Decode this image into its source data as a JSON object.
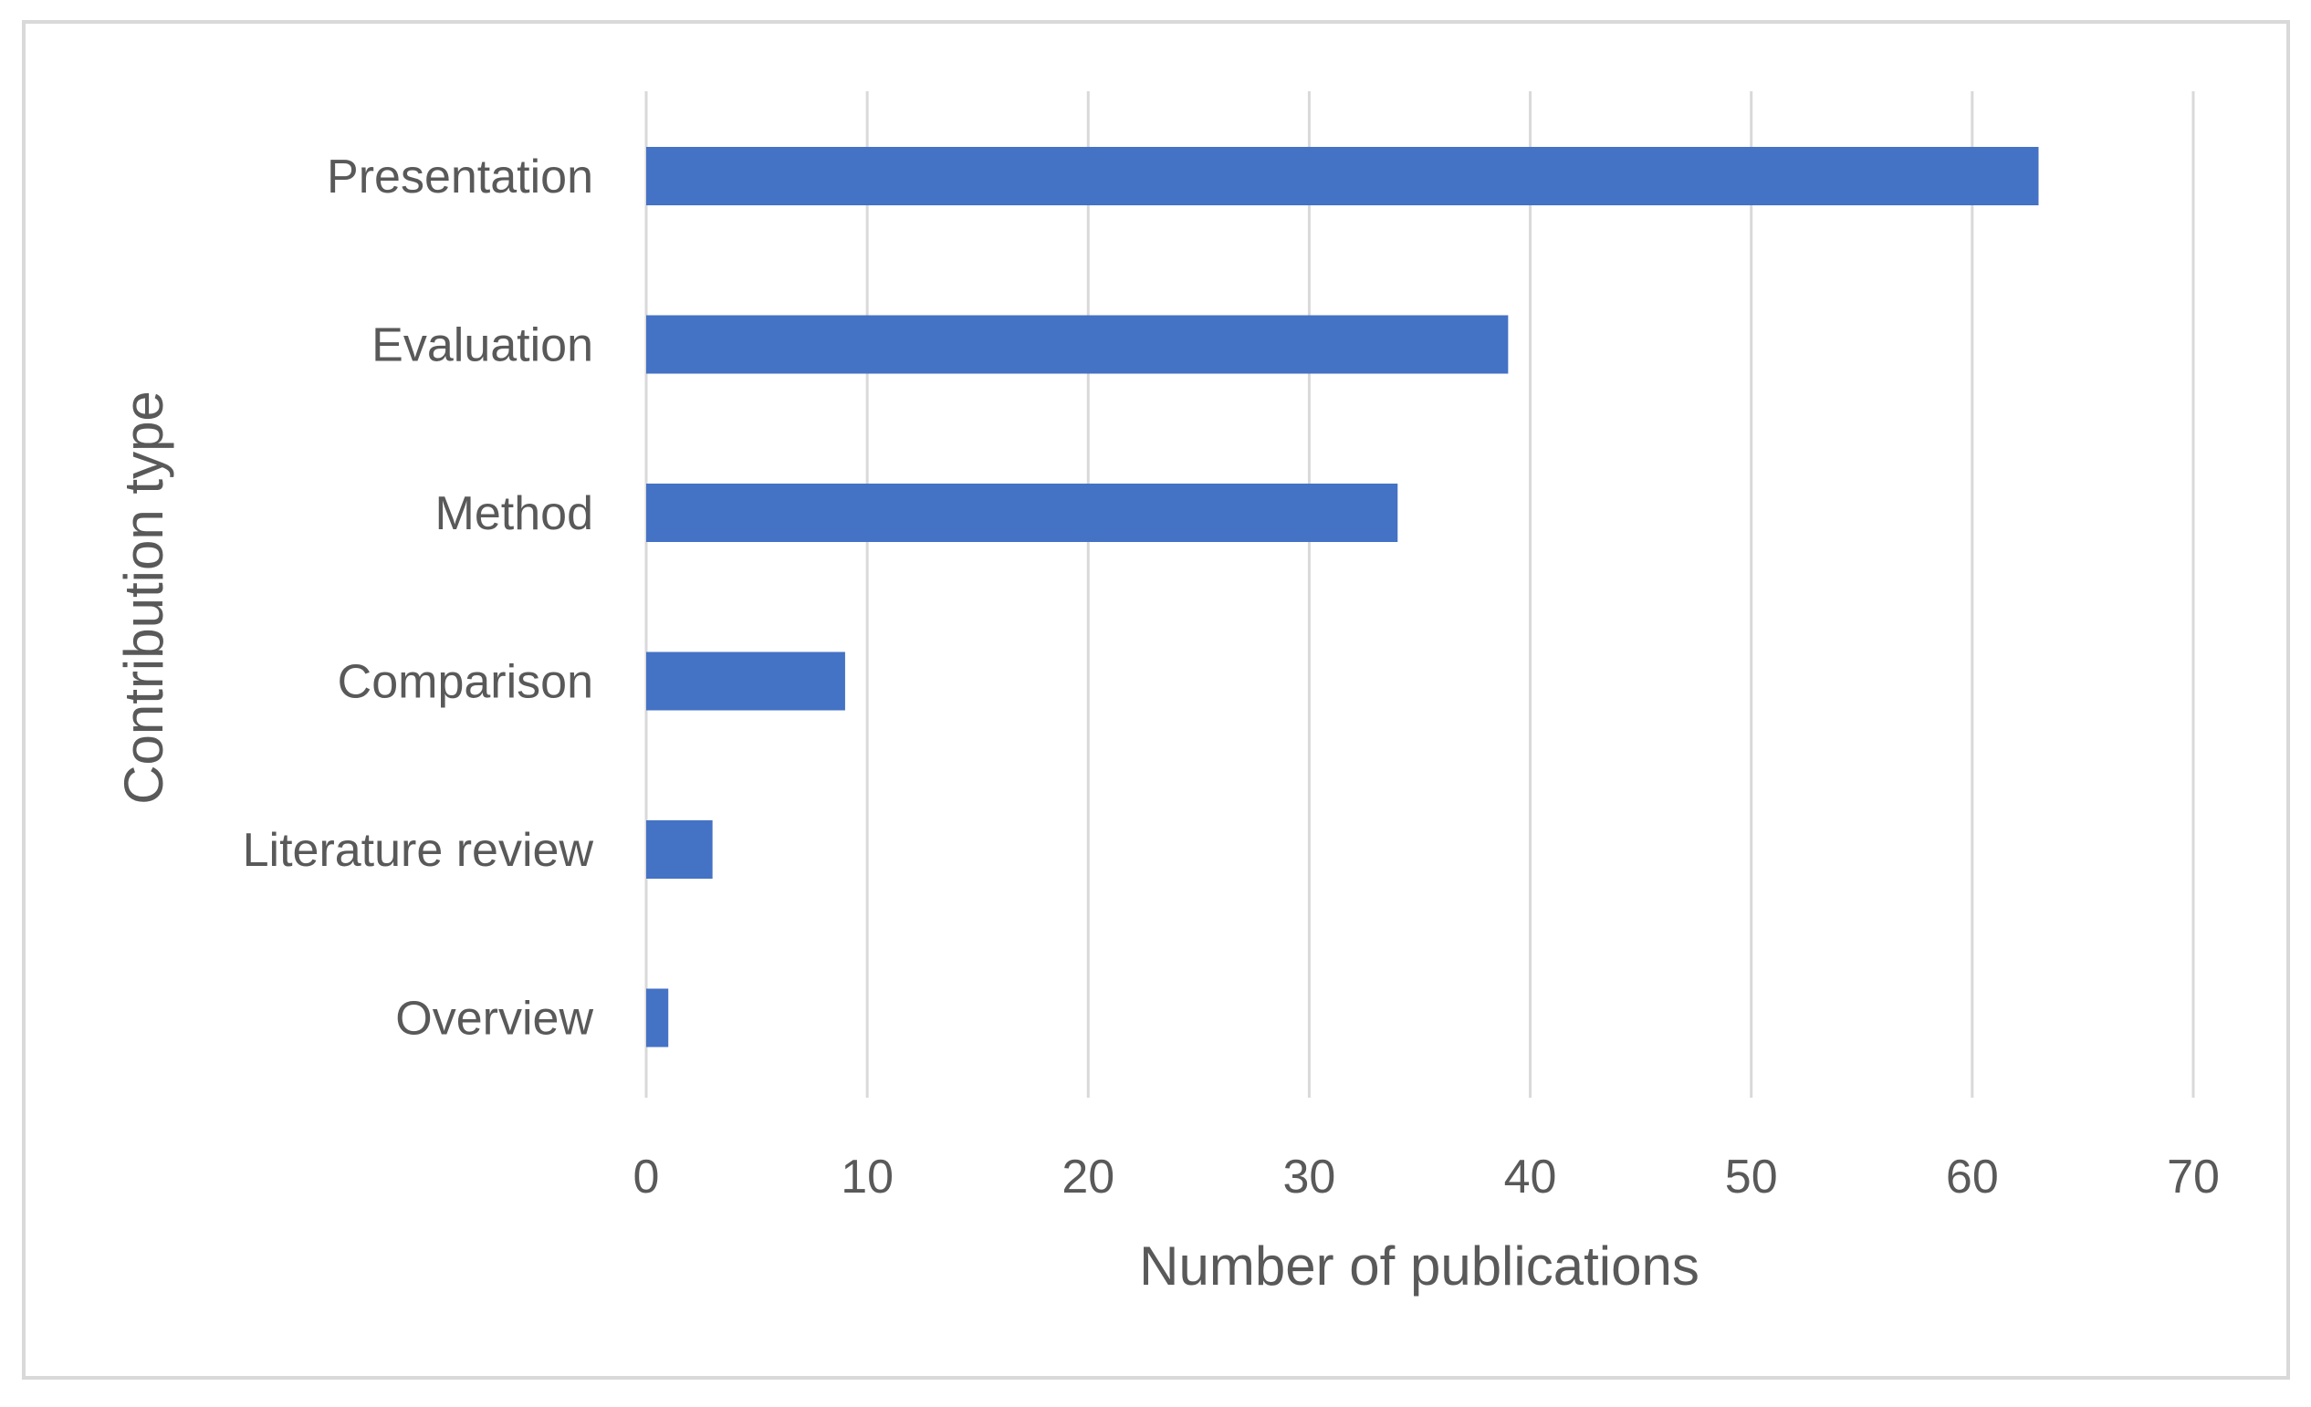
{
  "chart_data": {
    "type": "bar",
    "orientation": "horizontal",
    "categories": [
      "Presentation",
      "Evaluation",
      "Method",
      "Comparison",
      "Literature review",
      "Overview"
    ],
    "values": [
      63,
      39,
      34,
      9,
      3,
      1
    ],
    "xlabel": "Number of publications",
    "ylabel": "Contribution type",
    "xlim": [
      0,
      70
    ],
    "xticks": [
      0,
      10,
      20,
      30,
      40,
      50,
      60,
      70
    ],
    "xtick_labels": [
      "0",
      "10",
      "20",
      "30",
      "40",
      "50",
      "60",
      "70"
    ],
    "grid": "vertical",
    "bar_color": "#4472c4"
  }
}
